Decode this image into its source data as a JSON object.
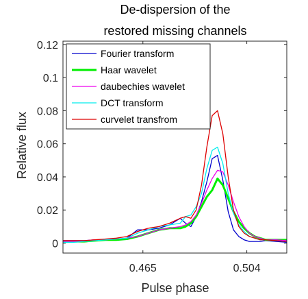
{
  "chart_data": {
    "type": "line",
    "title": [
      "De-dispersion of the",
      "restored missing channels"
    ],
    "xlabel": "Pulse phase",
    "ylabel": "Relative flux",
    "xlim": [
      0.435,
      0.519
    ],
    "ylim": [
      -0.006,
      0.122
    ],
    "x_ticks": [
      0.465,
      0.504
    ],
    "x_tick_labels": [
      "0.465",
      "0.504"
    ],
    "y_ticks": [
      0,
      0.02,
      0.04,
      0.06,
      0.08,
      0.1,
      0.12
    ],
    "y_tick_labels": [
      "0",
      "0.02",
      "0.04",
      "0.06",
      "0.08",
      "0.1",
      "0.12"
    ],
    "grid": false,
    "legend_position": "top-left",
    "x": [
      0.435,
      0.439,
      0.443,
      0.447,
      0.451,
      0.455,
      0.459,
      0.463,
      0.467,
      0.471,
      0.475,
      0.479,
      0.481,
      0.483,
      0.485,
      0.487,
      0.489,
      0.491,
      0.493,
      0.495,
      0.497,
      0.499,
      0.501,
      0.503,
      0.505,
      0.507,
      0.509,
      0.511,
      0.515,
      0.519
    ],
    "series": [
      {
        "name": "Fourier transform",
        "color": "#0000cc",
        "width": 1.3,
        "values": [
          0.0015,
          0.0015,
          0.0015,
          0.002,
          0.002,
          0.002,
          0.003,
          0.008,
          0.008,
          0.009,
          0.011,
          0.015,
          0.012,
          0.01,
          0.016,
          0.025,
          0.037,
          0.051,
          0.053,
          0.038,
          0.019,
          0.008,
          0.004,
          0.002,
          0.001,
          0.001,
          0.001,
          0.0015,
          0.001,
          0.0005
        ]
      },
      {
        "name": "Haar wavelet",
        "color": "#00ee00",
        "width": 3,
        "values": [
          0.001,
          0.001,
          0.001,
          0.0015,
          0.002,
          0.002,
          0.0025,
          0.004,
          0.006,
          0.008,
          0.009,
          0.009,
          0.01,
          0.012,
          0.016,
          0.022,
          0.028,
          0.032,
          0.039,
          0.035,
          0.027,
          0.019,
          0.013,
          0.009,
          0.006,
          0.004,
          0.003,
          0.002,
          0.002,
          0.002
        ]
      },
      {
        "name": "daubechies wavelet",
        "color": "#ee00ee",
        "width": 1.3,
        "values": [
          0.001,
          0.001,
          0.0015,
          0.002,
          0.002,
          0.0025,
          0.003,
          0.004,
          0.006,
          0.008,
          0.009,
          0.01,
          0.011,
          0.013,
          0.017,
          0.024,
          0.032,
          0.039,
          0.044,
          0.043,
          0.035,
          0.025,
          0.016,
          0.01,
          0.006,
          0.004,
          0.003,
          0.002,
          0.002,
          0.0015
        ]
      },
      {
        "name": "DCT transform",
        "color": "#00eeee",
        "width": 1.3,
        "values": [
          0.0005,
          0.0005,
          0.001,
          0.0015,
          0.002,
          0.0025,
          0.003,
          0.006,
          0.008,
          0.01,
          0.011,
          0.012,
          0.016,
          0.017,
          0.022,
          0.03,
          0.045,
          0.056,
          0.058,
          0.048,
          0.03,
          0.018,
          0.011,
          0.007,
          0.004,
          0.003,
          0.002,
          0.002,
          0.0015,
          0.001
        ]
      },
      {
        "name": "curvelet transfrom",
        "color": "#dd0000",
        "width": 1.3,
        "values": [
          0.0015,
          0.0015,
          0.0015,
          0.002,
          0.0025,
          0.003,
          0.004,
          0.007,
          0.009,
          0.01,
          0.012,
          0.015,
          0.016,
          0.015,
          0.02,
          0.035,
          0.058,
          0.077,
          0.08,
          0.066,
          0.04,
          0.02,
          0.01,
          0.006,
          0.004,
          0.003,
          0.002,
          0.002,
          0.0015,
          0.001
        ]
      }
    ]
  }
}
